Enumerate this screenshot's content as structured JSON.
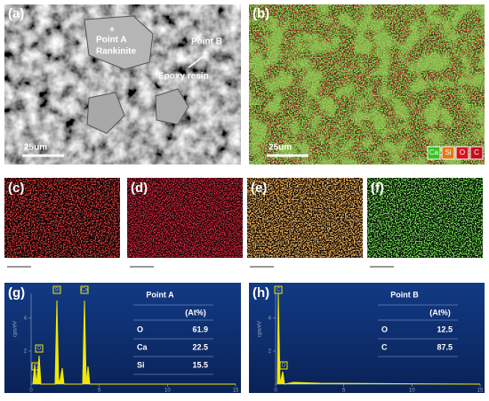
{
  "panels": {
    "a": {
      "label": "(a)",
      "annotations": [
        "Point A",
        "Rankinite",
        "Point B",
        "Epoxy resin"
      ],
      "scale_bar": "25um"
    },
    "b": {
      "label": "(b)",
      "scale_bar": "25um",
      "legend": [
        "Ca",
        "Si",
        "O",
        "C"
      ]
    },
    "c": {
      "label": "(c)"
    },
    "d": {
      "label": "(d)"
    },
    "e": {
      "label": "(e)"
    },
    "f": {
      "label": "(f)"
    },
    "g": {
      "label": "(g)",
      "y_label": "cps/eV",
      "yticks": [
        2,
        4
      ],
      "xticks": [
        0,
        5,
        10,
        15
      ],
      "peak_labels": [
        "Si",
        "Ca",
        "O",
        "C"
      ],
      "table": {
        "title": "Point A",
        "header": "(At%)",
        "rows": [
          [
            "O",
            "61.9"
          ],
          [
            "Ca",
            "22.5"
          ],
          [
            "Si",
            "15.5"
          ]
        ]
      }
    },
    "h": {
      "label": "(h)",
      "y_label": "cps/eV",
      "yticks": [
        2,
        4
      ],
      "xticks": [
        0,
        5,
        10,
        15
      ],
      "peak_labels": [
        "C",
        "O"
      ],
      "table": {
        "title": "Point B",
        "header": "(At%)",
        "rows": [
          [
            "O",
            "12.5"
          ],
          [
            "C",
            "87.5"
          ]
        ]
      }
    }
  }
}
